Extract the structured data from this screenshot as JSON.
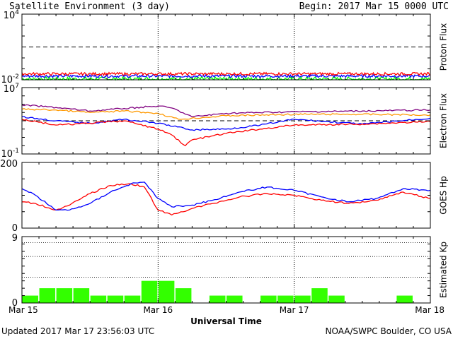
{
  "header": {
    "title": "Satellite Environment (3 day)",
    "begin": "Begin:  2017 Mar 15 0000 UTC"
  },
  "footer": {
    "updated": "Updated 2017 Mar 17 23:56:03 UTC",
    "credit": "NOAA/SWPC Boulder, CO USA"
  },
  "chart_data": [
    {
      "type": "line",
      "id": "proton",
      "ylabel": "Proton Flux",
      "yscale": "log",
      "ylim": [
        0.01,
        10000
      ],
      "y_tick_labels": [
        {
          "base": "10",
          "exp": "4",
          "value": 10000
        },
        {
          "base": "10",
          "exp": "-2",
          "value": 0.01
        }
      ],
      "threshold": 10,
      "xlim": [
        0,
        3
      ],
      "series": [
        {
          "color": "#00ff00",
          "level": 0.012,
          "noise": 0.35
        },
        {
          "color": "#0000ff",
          "level": 0.022,
          "noise": 0.25
        },
        {
          "color": "#ff0000",
          "level": 0.035,
          "noise": 0.25
        }
      ]
    },
    {
      "type": "line",
      "id": "electron",
      "ylabel": "Electron Flux",
      "yscale": "log",
      "ylim": [
        0.1,
        10000000
      ],
      "y_tick_labels": [
        {
          "base": "10",
          "exp": "7",
          "value": 10000000
        },
        {
          "base": "10",
          "exp": "-1",
          "value": 0.1
        }
      ],
      "threshold": 1000,
      "xlim": [
        0,
        3
      ],
      "series": [
        {
          "color": "#800080",
          "x": [
            0,
            0.25,
            0.5,
            0.75,
            1.0,
            1.1,
            1.25,
            1.5,
            2.0,
            2.5,
            3.0
          ],
          "y": [
            80000,
            40000,
            15000,
            30000,
            60000,
            35000,
            3000,
            8000,
            12000,
            15000,
            20000
          ]
        },
        {
          "color": "#ff9900",
          "x": [
            0,
            0.25,
            0.5,
            0.75,
            1.0,
            1.15,
            1.5,
            2.0,
            2.5,
            3.0
          ],
          "y": [
            25000,
            20000,
            10000,
            15000,
            8000,
            1500,
            4000,
            6000,
            6000,
            5000
          ]
        },
        {
          "color": "#0000ff",
          "x": [
            0,
            0.25,
            0.5,
            0.75,
            1.0,
            1.25,
            1.5,
            1.75,
            2.0,
            2.5,
            3.0
          ],
          "y": [
            3000,
            1000,
            500,
            1500,
            500,
            80,
            100,
            300,
            1500,
            400,
            2000
          ]
        },
        {
          "color": "#ff0000",
          "x": [
            0,
            0.25,
            0.5,
            0.75,
            1.0,
            1.1,
            1.2,
            1.25,
            1.5,
            1.75,
            2.0,
            2.5,
            3.0
          ],
          "y": [
            1500,
            300,
            500,
            1000,
            100,
            20,
            1,
            5,
            30,
            100,
            300,
            400,
            800
          ]
        }
      ]
    },
    {
      "type": "line",
      "id": "hp",
      "ylabel": "GOES Hp",
      "yscale": "linear",
      "ylim": [
        0,
        200
      ],
      "y_tick_labels": [
        {
          "text": "200",
          "value": 200
        },
        {
          "text": "0",
          "value": 0
        }
      ],
      "xlim": [
        0,
        3
      ],
      "series": [
        {
          "color": "#ff0000",
          "x": [
            0,
            0.1,
            0.25,
            0.35,
            0.5,
            0.65,
            0.8,
            0.9,
            1.0,
            1.1,
            1.25,
            1.4,
            1.6,
            1.8,
            2.0,
            2.2,
            2.4,
            2.6,
            2.8,
            3.0
          ],
          "y": [
            80,
            75,
            55,
            70,
            105,
            130,
            135,
            125,
            55,
            40,
            60,
            75,
            95,
            105,
            100,
            85,
            75,
            85,
            110,
            90
          ]
        },
        {
          "color": "#0000ff",
          "x": [
            0,
            0.1,
            0.25,
            0.35,
            0.5,
            0.65,
            0.8,
            0.9,
            1.0,
            1.1,
            1.25,
            1.4,
            1.6,
            1.8,
            2.0,
            2.2,
            2.4,
            2.6,
            2.8,
            3.0
          ],
          "y": [
            120,
            100,
            55,
            55,
            75,
            110,
            135,
            140,
            90,
            65,
            70,
            85,
            110,
            125,
            115,
            95,
            80,
            90,
            120,
            115
          ]
        }
      ]
    },
    {
      "type": "bar",
      "id": "kp",
      "ylabel": "Estimated Kp",
      "ylim": [
        0,
        9
      ],
      "y_tick_labels": [
        {
          "text": "9",
          "value": 9
        },
        {
          "text": "0",
          "value": 0
        }
      ],
      "xlim": [
        0,
        3
      ],
      "color": "#33ff00",
      "values": [
        1,
        2,
        2,
        2,
        1,
        1,
        1,
        3,
        3,
        2,
        0,
        1,
        1,
        0,
        1,
        1,
        1,
        2,
        1,
        0,
        0,
        0,
        1,
        0
      ]
    }
  ],
  "x_axis": {
    "label": "Universal Time",
    "ticks": [
      {
        "text": "Mar 15",
        "value": 0
      },
      {
        "text": "Mar 16",
        "value": 1
      },
      {
        "text": "Mar 17",
        "value": 2
      },
      {
        "text": "Mar 18",
        "value": 3
      }
    ]
  }
}
